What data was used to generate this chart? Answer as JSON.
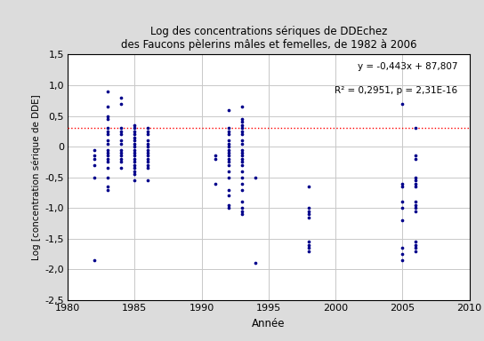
{
  "title_line1": "Log des concentrations sériques de DDEchez",
  "title_line2": "des Faucons pèlerins mâles et femelles, de 1982 à 2006",
  "xlabel": "Année",
  "ylabel": "Log [concentration sérique de DDE]",
  "xlim": [
    1980,
    2010
  ],
  "ylim": [
    -2.5,
    1.5
  ],
  "xticks": [
    1980,
    1985,
    1990,
    1995,
    2000,
    2005,
    2010
  ],
  "yticks": [
    -2.5,
    -2,
    -1.5,
    -1,
    -0.5,
    0,
    0.5,
    1,
    1.5
  ],
  "regression_slope": -0.443,
  "regression_intercept": 87.807,
  "equation_text": "y = -0,443x + 87,807",
  "r2_text": "R² = 0,2951, p = 2,31E-16",
  "hline_y": 0.3,
  "hline_color": "#FF0000",
  "dot_color": "#00008B",
  "background_color": "#DCDCDC",
  "plot_bg_color": "#FFFFFF",
  "grid_color": "#C8C8C8",
  "data_points": [
    [
      1982,
      -0.05
    ],
    [
      1982,
      -0.15
    ],
    [
      1982,
      -0.2
    ],
    [
      1982,
      -0.3
    ],
    [
      1982,
      -0.5
    ],
    [
      1982,
      -1.85
    ],
    [
      1983,
      0.9
    ],
    [
      1983,
      0.65
    ],
    [
      1983,
      0.5
    ],
    [
      1983,
      0.45
    ],
    [
      1983,
      0.3
    ],
    [
      1983,
      0.25
    ],
    [
      1983,
      0.2
    ],
    [
      1983,
      0.1
    ],
    [
      1983,
      0.05
    ],
    [
      1983,
      -0.05
    ],
    [
      1983,
      -0.1
    ],
    [
      1983,
      -0.15
    ],
    [
      1983,
      -0.2
    ],
    [
      1983,
      -0.25
    ],
    [
      1983,
      -0.35
    ],
    [
      1983,
      -0.5
    ],
    [
      1983,
      -0.65
    ],
    [
      1983,
      -0.7
    ],
    [
      1984,
      0.8
    ],
    [
      1984,
      0.7
    ],
    [
      1984,
      0.3
    ],
    [
      1984,
      0.25
    ],
    [
      1984,
      0.2
    ],
    [
      1984,
      0.1
    ],
    [
      1984,
      0.05
    ],
    [
      1984,
      -0.05
    ],
    [
      1984,
      -0.1
    ],
    [
      1984,
      -0.15
    ],
    [
      1984,
      -0.2
    ],
    [
      1984,
      -0.25
    ],
    [
      1984,
      -0.35
    ],
    [
      1985,
      0.35
    ],
    [
      1985,
      0.3
    ],
    [
      1985,
      0.25
    ],
    [
      1985,
      0.2
    ],
    [
      1985,
      0.15
    ],
    [
      1985,
      0.1
    ],
    [
      1985,
      0.05
    ],
    [
      1985,
      0.0
    ],
    [
      1985,
      -0.05
    ],
    [
      1985,
      -0.1
    ],
    [
      1985,
      -0.15
    ],
    [
      1985,
      -0.2
    ],
    [
      1985,
      -0.25
    ],
    [
      1985,
      -0.3
    ],
    [
      1985,
      -0.35
    ],
    [
      1985,
      -0.4
    ],
    [
      1985,
      -0.45
    ],
    [
      1985,
      -0.55
    ],
    [
      1986,
      0.3
    ],
    [
      1986,
      0.25
    ],
    [
      1986,
      0.2
    ],
    [
      1986,
      0.1
    ],
    [
      1986,
      0.05
    ],
    [
      1986,
      0.0
    ],
    [
      1986,
      -0.05
    ],
    [
      1986,
      -0.1
    ],
    [
      1986,
      -0.15
    ],
    [
      1986,
      -0.2
    ],
    [
      1986,
      -0.25
    ],
    [
      1986,
      -0.3
    ],
    [
      1986,
      -0.35
    ],
    [
      1986,
      -0.55
    ],
    [
      1991,
      -0.15
    ],
    [
      1991,
      -0.2
    ],
    [
      1991,
      -0.6
    ],
    [
      1992,
      0.6
    ],
    [
      1992,
      0.3
    ],
    [
      1992,
      0.25
    ],
    [
      1992,
      0.2
    ],
    [
      1992,
      0.1
    ],
    [
      1992,
      0.05
    ],
    [
      1992,
      0.0
    ],
    [
      1992,
      -0.05
    ],
    [
      1992,
      -0.1
    ],
    [
      1992,
      -0.15
    ],
    [
      1992,
      -0.2
    ],
    [
      1992,
      -0.25
    ],
    [
      1992,
      -0.3
    ],
    [
      1992,
      -0.4
    ],
    [
      1992,
      -0.5
    ],
    [
      1992,
      -0.7
    ],
    [
      1992,
      -0.8
    ],
    [
      1992,
      -0.95
    ],
    [
      1992,
      -1.0
    ],
    [
      1993,
      0.65
    ],
    [
      1993,
      0.45
    ],
    [
      1993,
      0.4
    ],
    [
      1993,
      0.35
    ],
    [
      1993,
      0.3
    ],
    [
      1993,
      0.25
    ],
    [
      1993,
      0.2
    ],
    [
      1993,
      0.1
    ],
    [
      1993,
      0.05
    ],
    [
      1993,
      -0.05
    ],
    [
      1993,
      -0.1
    ],
    [
      1993,
      -0.15
    ],
    [
      1993,
      -0.2
    ],
    [
      1993,
      -0.25
    ],
    [
      1993,
      -0.3
    ],
    [
      1993,
      -0.4
    ],
    [
      1993,
      -0.5
    ],
    [
      1993,
      -0.6
    ],
    [
      1993,
      -0.7
    ],
    [
      1993,
      -0.9
    ],
    [
      1993,
      -1.0
    ],
    [
      1993,
      -1.05
    ],
    [
      1993,
      -1.1
    ],
    [
      1994,
      -0.5
    ],
    [
      1994,
      -1.9
    ],
    [
      1998,
      -0.65
    ],
    [
      1998,
      -1.0
    ],
    [
      1998,
      -1.05
    ],
    [
      1998,
      -1.1
    ],
    [
      1998,
      -1.15
    ],
    [
      1998,
      -1.55
    ],
    [
      1998,
      -1.6
    ],
    [
      1998,
      -1.65
    ],
    [
      1998,
      -1.7
    ],
    [
      2005,
      0.7
    ],
    [
      2005,
      -0.6
    ],
    [
      2005,
      -0.65
    ],
    [
      2005,
      -0.9
    ],
    [
      2005,
      -1.0
    ],
    [
      2005,
      -1.2
    ],
    [
      2005,
      -1.65
    ],
    [
      2005,
      -1.75
    ],
    [
      2005,
      -1.85
    ],
    [
      2006,
      0.3
    ],
    [
      2006,
      -0.15
    ],
    [
      2006,
      -0.2
    ],
    [
      2006,
      -0.5
    ],
    [
      2006,
      -0.55
    ],
    [
      2006,
      -0.6
    ],
    [
      2006,
      -0.65
    ],
    [
      2006,
      -0.9
    ],
    [
      2006,
      -0.95
    ],
    [
      2006,
      -1.0
    ],
    [
      2006,
      -1.05
    ],
    [
      2006,
      -1.55
    ],
    [
      2006,
      -1.6
    ],
    [
      2006,
      -1.65
    ],
    [
      2006,
      -1.7
    ]
  ]
}
